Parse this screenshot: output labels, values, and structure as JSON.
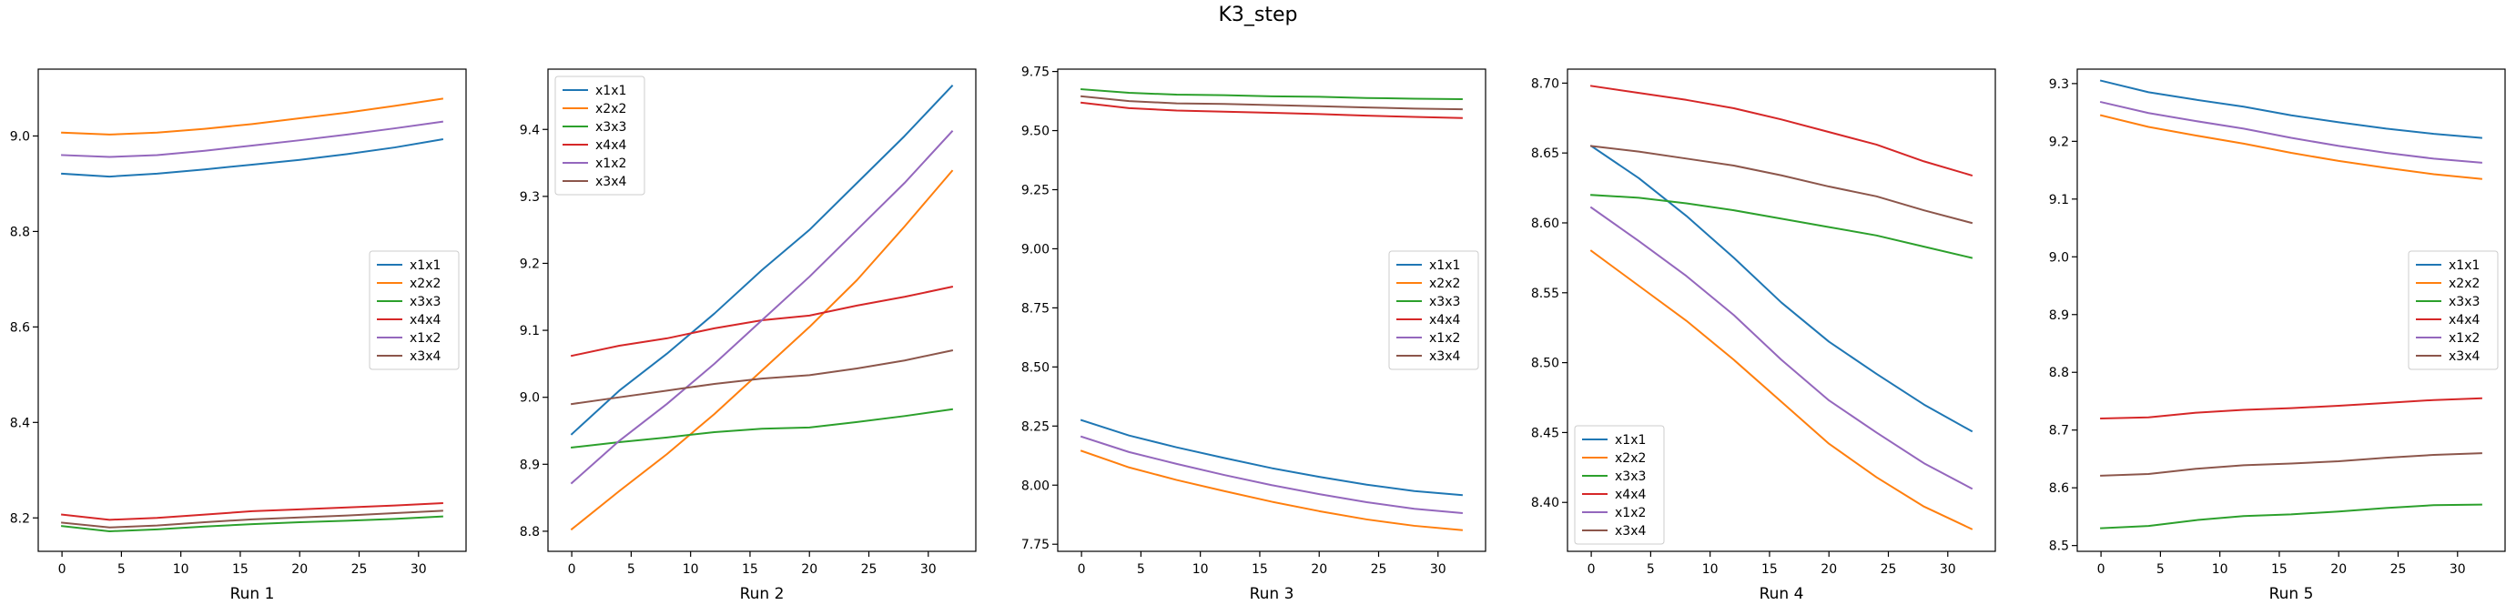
{
  "figure": {
    "title": "K3_step"
  },
  "chart_data": [
    {
      "type": "line",
      "xlabel": "Run 1",
      "ylabel": "",
      "xlim": [
        -2,
        34
      ],
      "ylim": [
        8.13,
        9.14
      ],
      "xticks": [
        0,
        5,
        10,
        15,
        20,
        25,
        30
      ],
      "yticks": [
        8.2,
        8.4,
        8.6,
        8.8,
        9.0
      ],
      "ytick_labels": [
        "8.2",
        "8.4",
        "8.6",
        "8.8",
        "9.0"
      ],
      "legend": "center-right",
      "x": [
        0,
        4,
        8,
        12,
        16,
        20,
        24,
        28,
        32
      ],
      "series": [
        {
          "name": "x1x1",
          "color": "#1f77b4",
          "values": [
            8.921,
            8.915,
            8.921,
            8.93,
            8.94,
            8.95,
            8.962,
            8.976,
            8.993
          ]
        },
        {
          "name": "x2x2",
          "color": "#ff7f0e",
          "values": [
            9.007,
            9.003,
            9.007,
            9.015,
            9.025,
            9.037,
            9.049,
            9.063,
            9.078
          ]
        },
        {
          "name": "x3x3",
          "color": "#2ca02c",
          "values": [
            8.183,
            8.172,
            8.176,
            8.182,
            8.187,
            8.191,
            8.194,
            8.198,
            8.203
          ]
        },
        {
          "name": "x4x4",
          "color": "#d62728",
          "values": [
            8.207,
            8.196,
            8.2,
            8.207,
            8.214,
            8.218,
            8.222,
            8.226,
            8.231
          ]
        },
        {
          "name": "x1x2",
          "color": "#9467bd",
          "values": [
            8.96,
            8.956,
            8.96,
            8.969,
            8.98,
            8.991,
            9.003,
            9.016,
            9.03
          ]
        },
        {
          "name": "x3x4",
          "color": "#8c564b",
          "values": [
            8.19,
            8.18,
            8.184,
            8.191,
            8.197,
            8.201,
            8.205,
            8.21,
            8.215
          ]
        }
      ]
    },
    {
      "type": "line",
      "xlabel": "Run 2",
      "ylabel": "",
      "xlim": [
        -2,
        34
      ],
      "ylim": [
        8.77,
        9.49
      ],
      "xticks": [
        0,
        5,
        10,
        15,
        20,
        25,
        30
      ],
      "yticks": [
        8.8,
        8.9,
        9.0,
        9.1,
        9.2,
        9.3,
        9.4
      ],
      "ytick_labels": [
        "8.8",
        "8.9",
        "9.0",
        "9.1",
        "9.2",
        "9.3",
        "9.4"
      ],
      "legend": "top-left",
      "x": [
        0,
        4,
        8,
        12,
        16,
        20,
        24,
        28,
        32
      ],
      "series": [
        {
          "name": "x1x1",
          "color": "#1f77b4",
          "values": [
            8.945,
            9.01,
            9.065,
            9.125,
            9.19,
            9.25,
            9.32,
            9.39,
            9.465
          ]
        },
        {
          "name": "x2x2",
          "color": "#ff7f0e",
          "values": [
            8.803,
            8.86,
            8.915,
            8.975,
            9.04,
            9.105,
            9.175,
            9.255,
            9.338
          ]
        },
        {
          "name": "x3x3",
          "color": "#2ca02c",
          "values": [
            8.925,
            8.933,
            8.94,
            8.948,
            8.953,
            8.955,
            8.963,
            8.972,
            8.982
          ]
        },
        {
          "name": "x4x4",
          "color": "#d62728",
          "values": [
            9.062,
            9.077,
            9.088,
            9.103,
            9.115,
            9.122,
            9.137,
            9.15,
            9.165
          ]
        },
        {
          "name": "x1x2",
          "color": "#9467bd",
          "values": [
            8.872,
            8.935,
            8.99,
            9.05,
            9.115,
            9.18,
            9.25,
            9.32,
            9.397
          ]
        },
        {
          "name": "x3x4",
          "color": "#8c564b",
          "values": [
            8.99,
            9.0,
            9.01,
            9.02,
            9.028,
            9.033,
            9.043,
            9.055,
            9.07
          ]
        }
      ]
    },
    {
      "type": "line",
      "xlabel": "Run 3",
      "ylabel": "",
      "xlim": [
        -2,
        34
      ],
      "ylim": [
        7.72,
        9.76
      ],
      "xticks": [
        0,
        5,
        10,
        15,
        20,
        25,
        30
      ],
      "yticks": [
        7.75,
        8.0,
        8.25,
        8.5,
        8.75,
        9.0,
        9.25,
        9.5,
        9.75
      ],
      "ytick_labels": [
        "7.75",
        "8.00",
        "8.25",
        "8.50",
        "8.75",
        "9.00",
        "9.25",
        "9.50",
        "9.75"
      ],
      "legend": "center-right",
      "x": [
        0,
        4,
        8,
        12,
        16,
        20,
        24,
        28,
        32
      ],
      "series": [
        {
          "name": "x1x1",
          "color": "#1f77b4",
          "values": [
            8.275,
            8.21,
            8.16,
            8.115,
            8.072,
            8.035,
            8.002,
            7.975,
            7.958
          ]
        },
        {
          "name": "x2x2",
          "color": "#ff7f0e",
          "values": [
            8.145,
            8.075,
            8.022,
            7.975,
            7.93,
            7.89,
            7.855,
            7.828,
            7.81
          ]
        },
        {
          "name": "x3x3",
          "color": "#2ca02c",
          "values": [
            9.675,
            9.66,
            9.652,
            9.65,
            9.645,
            9.643,
            9.638,
            9.635,
            9.633
          ]
        },
        {
          "name": "x4x4",
          "color": "#d62728",
          "values": [
            9.618,
            9.595,
            9.585,
            9.58,
            9.575,
            9.57,
            9.563,
            9.558,
            9.553
          ]
        },
        {
          "name": "x1x2",
          "color": "#9467bd",
          "values": [
            8.205,
            8.14,
            8.09,
            8.043,
            8.0,
            7.962,
            7.928,
            7.9,
            7.882
          ]
        },
        {
          "name": "x3x4",
          "color": "#8c564b",
          "values": [
            9.645,
            9.625,
            9.615,
            9.613,
            9.608,
            9.603,
            9.598,
            9.593,
            9.59
          ]
        }
      ]
    },
    {
      "type": "line",
      "xlabel": "Run 4",
      "ylabel": "",
      "xlim": [
        -2,
        34
      ],
      "ylim": [
        8.365,
        8.71
      ],
      "xticks": [
        0,
        5,
        10,
        15,
        20,
        25,
        30
      ],
      "yticks": [
        8.4,
        8.45,
        8.5,
        8.55,
        8.6,
        8.65,
        8.7
      ],
      "ytick_labels": [
        "8.40",
        "8.45",
        "8.50",
        "8.55",
        "8.60",
        "8.65",
        "8.70"
      ],
      "legend": "bottom-left",
      "x": [
        0,
        4,
        8,
        12,
        16,
        20,
        24,
        28,
        32
      ],
      "series": [
        {
          "name": "x1x1",
          "color": "#1f77b4",
          "values": [
            8.655,
            8.632,
            8.605,
            8.575,
            8.543,
            8.515,
            8.492,
            8.47,
            8.451
          ]
        },
        {
          "name": "x2x2",
          "color": "#ff7f0e",
          "values": [
            8.58,
            8.555,
            8.53,
            8.502,
            8.472,
            8.442,
            8.418,
            8.397,
            8.381
          ]
        },
        {
          "name": "x3x3",
          "color": "#2ca02c",
          "values": [
            8.62,
            8.618,
            8.614,
            8.609,
            8.603,
            8.597,
            8.591,
            8.583,
            8.575
          ]
        },
        {
          "name": "x4x4",
          "color": "#d62728",
          "values": [
            8.698,
            8.693,
            8.688,
            8.682,
            8.674,
            8.665,
            8.656,
            8.644,
            8.634
          ]
        },
        {
          "name": "x1x2",
          "color": "#9467bd",
          "values": [
            8.611,
            8.587,
            8.562,
            8.534,
            8.502,
            8.473,
            8.45,
            8.428,
            8.41
          ]
        },
        {
          "name": "x3x4",
          "color": "#8c564b",
          "values": [
            8.655,
            8.651,
            8.646,
            8.641,
            8.634,
            8.626,
            8.619,
            8.609,
            8.6
          ]
        }
      ]
    },
    {
      "type": "line",
      "xlabel": "Run 5",
      "ylabel": "",
      "xlim": [
        -2,
        34
      ],
      "ylim": [
        8.49,
        9.325
      ],
      "xticks": [
        0,
        5,
        10,
        15,
        20,
        25,
        30
      ],
      "yticks": [
        8.5,
        8.6,
        8.7,
        8.8,
        8.9,
        9.0,
        9.1,
        9.2,
        9.3
      ],
      "ytick_labels": [
        "8.5",
        "8.6",
        "8.7",
        "8.8",
        "8.9",
        "9.0",
        "9.1",
        "9.2",
        "9.3"
      ],
      "legend": "center-right",
      "x": [
        0,
        4,
        8,
        12,
        16,
        20,
        24,
        28,
        32
      ],
      "series": [
        {
          "name": "x1x1",
          "color": "#1f77b4",
          "values": [
            9.305,
            9.285,
            9.272,
            9.26,
            9.245,
            9.233,
            9.222,
            9.213,
            9.206
          ]
        },
        {
          "name": "x2x2",
          "color": "#ff7f0e",
          "values": [
            9.245,
            9.225,
            9.21,
            9.196,
            9.18,
            9.166,
            9.154,
            9.143,
            9.135
          ]
        },
        {
          "name": "x3x3",
          "color": "#2ca02c",
          "values": [
            8.53,
            8.534,
            8.544,
            8.551,
            8.554,
            8.559,
            8.565,
            8.57,
            8.571
          ]
        },
        {
          "name": "x4x4",
          "color": "#d62728",
          "values": [
            8.72,
            8.722,
            8.73,
            8.735,
            8.738,
            8.742,
            8.747,
            8.752,
            8.755
          ]
        },
        {
          "name": "x1x2",
          "color": "#9467bd",
          "values": [
            9.268,
            9.249,
            9.235,
            9.222,
            9.206,
            9.192,
            9.18,
            9.17,
            9.163
          ]
        },
        {
          "name": "x3x4",
          "color": "#8c564b",
          "values": [
            8.621,
            8.624,
            8.633,
            8.639,
            8.642,
            8.646,
            8.652,
            8.657,
            8.66
          ]
        }
      ]
    }
  ]
}
